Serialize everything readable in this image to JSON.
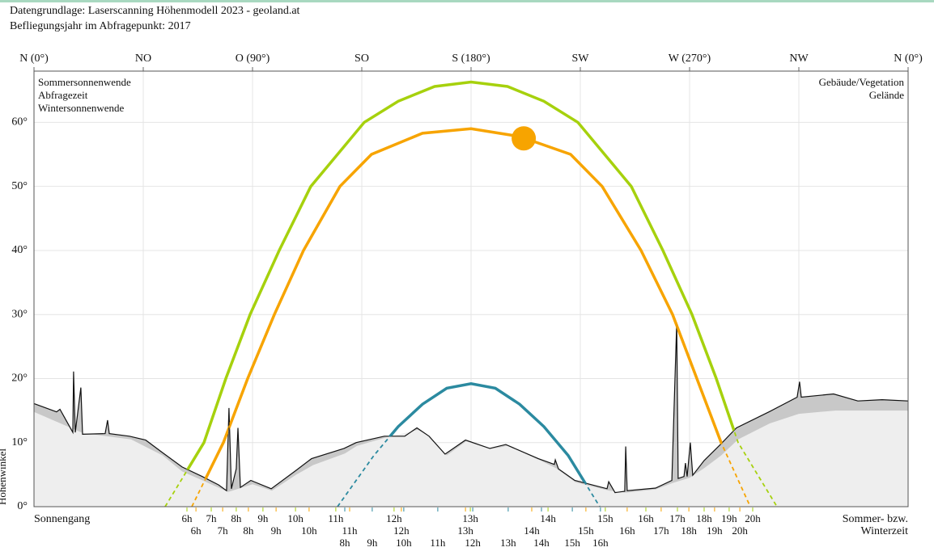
{
  "header": {
    "line1": "Datengrundlage: Laserscanning Höhenmodell 2023 - geoland.at",
    "line2": "Befliegungsjahr im Abfragepunkt: 2017"
  },
  "chart_data": {
    "type": "sunpath",
    "y_label": "Höhenwinkel",
    "bottom_left": "Sonnengang",
    "bottom_right": [
      "Sommer- bzw.",
      "Winterzeit"
    ],
    "xlim": [
      0,
      360
    ],
    "ylim": [
      0,
      68
    ],
    "xticks": [
      {
        "value": 0,
        "label": "N (0°)"
      },
      {
        "value": 45,
        "label": "NO"
      },
      {
        "value": 90,
        "label": "O (90°)"
      },
      {
        "value": 135,
        "label": "SO"
      },
      {
        "value": 180,
        "label": "S (180°)"
      },
      {
        "value": 225,
        "label": "SW"
      },
      {
        "value": 270,
        "label": "W (270°)"
      },
      {
        "value": 315,
        "label": "NW"
      },
      {
        "value": 360,
        "label": "N (0°)"
      }
    ],
    "yticks": [
      {
        "value": 0,
        "label": "0°"
      },
      {
        "value": 10,
        "label": "10°"
      },
      {
        "value": 20,
        "label": "20°"
      },
      {
        "value": 30,
        "label": "30°"
      },
      {
        "value": 40,
        "label": "40°"
      },
      {
        "value": 50,
        "label": "50°"
      },
      {
        "value": 60,
        "label": "60°"
      }
    ],
    "grid": true,
    "series": [
      {
        "name": "Sommersonnenwende",
        "color": "#a6d10d",
        "label_color": "#a6c800",
        "x": [
          54,
          62,
          70,
          79,
          89,
          101,
          114,
          136,
          150,
          165,
          180,
          195,
          210,
          224,
          246,
          259,
          271,
          281,
          290,
          298,
          306
        ],
        "values": [
          0,
          5,
          10,
          20,
          30,
          40,
          50,
          60,
          63.3,
          65.6,
          66.3,
          65.6,
          63.3,
          60,
          50,
          40,
          30,
          20,
          10,
          5,
          0
        ],
        "hours": [
          {
            "x": 63,
            "label": "6h"
          },
          {
            "x": 73,
            "label": "7h"
          },
          {
            "x": 83.3,
            "label": "8h"
          },
          {
            "x": 94.3,
            "label": "9h"
          },
          {
            "x": 107.7,
            "label": "10h"
          },
          {
            "x": 124.3,
            "label": "11h"
          },
          {
            "x": 148.3,
            "label": "12h"
          },
          {
            "x": 179.7,
            "label": "13h"
          },
          {
            "x": 211.7,
            "label": "14h"
          },
          {
            "x": 235.3,
            "label": "15h"
          },
          {
            "x": 252,
            "label": "16h"
          },
          {
            "x": 265,
            "label": "17h"
          },
          {
            "x": 276,
            "label": "18h"
          },
          {
            "x": 286.3,
            "label": "19h"
          },
          {
            "x": 296,
            "label": "20h"
          }
        ]
      },
      {
        "name": "Abfragezeit",
        "color": "#f7a400",
        "label_color": "#f0a000",
        "x": [
          65,
          78,
          88,
          99,
          111,
          126,
          139,
          160,
          180,
          200,
          221,
          234,
          250,
          263,
          273,
          283,
          295
        ],
        "values": [
          0,
          10,
          20,
          30,
          40,
          50,
          55,
          58.3,
          59,
          57.8,
          55,
          50,
          40,
          30,
          20,
          10,
          0
        ],
        "hours": [
          {
            "x": 66.7,
            "label": "6h"
          },
          {
            "x": 77.7,
            "label": "7h"
          },
          {
            "x": 88.3,
            "label": "8h"
          },
          {
            "x": 99.7,
            "label": "9h"
          },
          {
            "x": 113.3,
            "label": "10h"
          },
          {
            "x": 130,
            "label": "11h"
          },
          {
            "x": 151.3,
            "label": "12h"
          },
          {
            "x": 177.7,
            "label": "13h"
          },
          {
            "x": 205,
            "label": "14h"
          },
          {
            "x": 227.3,
            "label": "15h"
          },
          {
            "x": 244.3,
            "label": "16h"
          },
          {
            "x": 258.3,
            "label": "17h"
          },
          {
            "x": 269.7,
            "label": "18h"
          },
          {
            "x": 280.3,
            "label": "19h"
          },
          {
            "x": 290.7,
            "label": "20h"
          }
        ]
      },
      {
        "name": "Wintersonnenwende",
        "color": "#2b8aa0",
        "label_color": "#2b8aa0",
        "x": [
          125,
          140,
          150,
          160,
          170,
          180,
          190,
          200,
          210,
          220,
          233
        ],
        "values": [
          0,
          8,
          12.5,
          16,
          18.5,
          19.2,
          18.5,
          16,
          12.5,
          8,
          0
        ],
        "hours": [
          {
            "x": 128,
            "label": "8h"
          },
          {
            "x": 139.3,
            "label": "9h"
          },
          {
            "x": 152.3,
            "label": "10h"
          },
          {
            "x": 166.3,
            "label": "11h"
          },
          {
            "x": 180.7,
            "label": "12h"
          },
          {
            "x": 195.3,
            "label": "13h"
          },
          {
            "x": 209,
            "label": "14h"
          },
          {
            "x": 221.7,
            "label": "15h"
          },
          {
            "x": 233.3,
            "label": "16h"
          }
        ]
      }
    ],
    "sun_position": {
      "x": 201.7,
      "value": 57.5,
      "color": "#f7a400"
    },
    "terrain": [
      {
        "name": "Gebäude/Vegetation",
        "color": "#c8c8c8",
        "label_color": "#555555",
        "x": [
          0,
          9.3,
          10.7,
          16,
          16.3,
          17,
          19.3,
          20,
          29.3,
          30.3,
          31,
          39.3,
          46,
          52.7,
          61,
          69.3,
          76,
          79.3,
          80.3,
          81.3,
          83.3,
          84,
          85,
          89.3,
          97.7,
          107.7,
          114.3,
          127.7,
          132.7,
          144.3,
          152.7,
          157.7,
          162.7,
          169.3,
          177.7,
          187.7,
          194.3,
          207.7,
          214.3,
          214.7,
          216,
          222.7,
          236,
          236.7,
          239.3,
          243.3,
          243.7,
          244.3,
          256,
          262.7,
          264.7,
          265.3,
          267.7,
          268.3,
          269,
          270.3,
          271.3,
          276,
          282.7,
          289.3,
          302.7,
          314.3,
          315.3,
          316,
          329.3,
          339.3,
          349.3,
          360
        ],
        "values": [
          16.1,
          14.8,
          15.2,
          11.6,
          21.1,
          11.6,
          18.6,
          11.3,
          11.4,
          13.5,
          11.4,
          11,
          10.4,
          8.5,
          6.2,
          4.7,
          3.4,
          2.5,
          15.4,
          2.8,
          5.9,
          12.3,
          3,
          4.1,
          2.8,
          5.6,
          7.5,
          9.1,
          10,
          11,
          11,
          12.3,
          11,
          8.2,
          10.4,
          9.1,
          9.7,
          7.5,
          6.6,
          7.3,
          5.9,
          4.1,
          2.8,
          3.9,
          2.2,
          2.4,
          9.4,
          2.5,
          2.9,
          4.1,
          28.7,
          4.4,
          4.7,
          6.8,
          4.7,
          10,
          4.9,
          7.2,
          9.7,
          12.3,
          14.8,
          17.1,
          19.5,
          17.1,
          17.6,
          16.5,
          16.7,
          16.5
        ]
      },
      {
        "name": "Gelände",
        "color": "#eeeeee",
        "label_color": "#aaaaaa",
        "x": [
          0,
          20,
          40,
          53,
          61,
          70,
          80,
          90,
          98,
          108,
          115,
          128,
          133,
          145,
          158,
          163,
          170,
          178,
          188,
          195,
          208,
          215,
          223,
          237,
          244,
          256,
          263,
          270,
          276,
          283,
          290,
          303,
          315,
          330,
          345,
          360
        ],
        "values": [
          14.8,
          11.5,
          10.5,
          8,
          5.5,
          4,
          2.3,
          3.5,
          2.5,
          5,
          6.5,
          8.3,
          9.5,
          10.8,
          12,
          11,
          8,
          10.2,
          9,
          9.5,
          7.3,
          6,
          3.8,
          2.5,
          2.2,
          2.7,
          3.7,
          4.5,
          6,
          8,
          10.5,
          13,
          14.5,
          15,
          15,
          15
        ]
      }
    ]
  }
}
